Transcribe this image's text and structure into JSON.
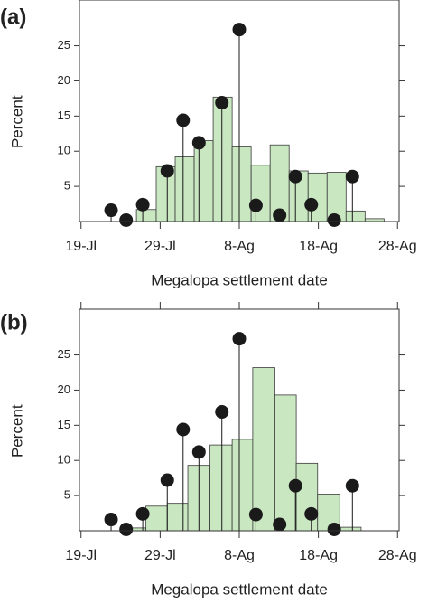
{
  "chart_data": [
    {
      "type": "histogram",
      "panel_label": "(a)",
      "xlabel": "Megalopa settlement date",
      "ylabel": "Percent",
      "color": "#c9e7c1",
      "edgecolor": "#3a3a3a",
      "bins": [
        7,
        9.5,
        11.9,
        14.3,
        16.7,
        19.1,
        21.5,
        23.9,
        26.3,
        28.7,
        31.1,
        33.5,
        35.9,
        38.3
      ],
      "counts": [
        1.7,
        7.8,
        9.2,
        11.5,
        17.7,
        10.6,
        8.0,
        10.9,
        7.2,
        6.9,
        7.0,
        1.5,
        0.4
      ],
      "stems": {
        "color": "#1a1a1a",
        "x": [
          3.8,
          5.7,
          7.8,
          10.9,
          12.9,
          14.9,
          17.8,
          20.0,
          22.1,
          25.1,
          27.1,
          29.1,
          32.0,
          34.3
        ],
        "values": [
          1.6,
          0.2,
          2.4,
          7.2,
          14.4,
          11.2,
          16.9,
          27.3,
          2.3,
          0.9,
          6.4,
          2.4,
          0.2,
          6.4
        ]
      },
      "xlim": [
        -0.2,
        40.2
      ],
      "ylim": [
        0,
        31.5
      ],
      "xticks": [
        {
          "value": 0,
          "label": "19-Jl"
        },
        {
          "value": 10,
          "label": "29-Jl"
        },
        {
          "value": 20,
          "label": "8-Ag"
        },
        {
          "value": 30,
          "label": "18-Ag"
        },
        {
          "value": 40,
          "label": "28-Ag"
        }
      ],
      "yticks": [
        5,
        10,
        15,
        20,
        25
      ]
    },
    {
      "type": "histogram",
      "panel_label": "(b)",
      "xlabel": "Megalopa settlement date",
      "ylabel": "Percent",
      "color": "#c9e7c1",
      "edgecolor": "#3a3a3a",
      "bins": [
        5.7,
        8.2,
        10.9,
        13.5,
        16.3,
        19.1,
        21.7,
        24.5,
        27.2,
        29.9,
        32.7,
        35.4
      ],
      "counts": [
        0.4,
        3.5,
        3.9,
        9.3,
        12.2,
        13.0,
        23.2,
        19.3,
        9.6,
        5.2,
        0.5
      ],
      "stems": {
        "color": "#1a1a1a",
        "x": [
          3.8,
          5.7,
          7.8,
          10.9,
          12.9,
          14.9,
          17.8,
          20.0,
          22.1,
          25.1,
          27.1,
          29.1,
          32.0,
          34.3
        ],
        "values": [
          1.6,
          0.2,
          2.4,
          7.2,
          14.4,
          11.2,
          16.9,
          27.3,
          2.3,
          0.9,
          6.4,
          2.4,
          0.2,
          6.4
        ]
      },
      "xlim": [
        -0.2,
        40.2
      ],
      "ylim": [
        0,
        31.5
      ],
      "xticks": [
        {
          "value": 0,
          "label": "19-Jl"
        },
        {
          "value": 10,
          "label": "29-Jl"
        },
        {
          "value": 20,
          "label": "8-Ag"
        },
        {
          "value": 30,
          "label": "18-Ag"
        },
        {
          "value": 40,
          "label": "28-Ag"
        }
      ],
      "yticks": [
        5,
        10,
        15,
        20,
        25
      ]
    }
  ]
}
